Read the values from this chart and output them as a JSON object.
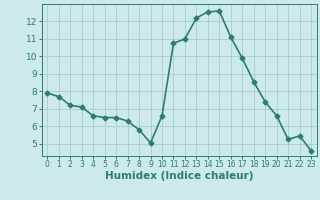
{
  "x": [
    0,
    1,
    2,
    3,
    4,
    5,
    6,
    7,
    8,
    9,
    10,
    11,
    12,
    13,
    14,
    15,
    16,
    17,
    18,
    19,
    20,
    21,
    22,
    23
  ],
  "y": [
    7.9,
    7.7,
    7.2,
    7.1,
    6.6,
    6.5,
    6.5,
    6.3,
    5.8,
    5.05,
    6.6,
    10.75,
    11.0,
    12.2,
    12.55,
    12.6,
    11.1,
    9.9,
    8.55,
    7.4,
    6.6,
    5.25,
    5.45,
    4.6
  ],
  "xlabel": "Humidex (Indice chaleur)",
  "xlim": [
    -0.5,
    23.5
  ],
  "ylim": [
    4.3,
    13.0
  ],
  "yticks": [
    5,
    6,
    7,
    8,
    9,
    10,
    11,
    12
  ],
  "xticks": [
    0,
    1,
    2,
    3,
    4,
    5,
    6,
    7,
    8,
    9,
    10,
    11,
    12,
    13,
    14,
    15,
    16,
    17,
    18,
    19,
    20,
    21,
    22,
    23
  ],
  "line_color": "#2d7d6e",
  "marker": "D",
  "marker_size": 2.5,
  "bg_color": "#cceaea",
  "grid_color": "#b0d0d0",
  "axis_color": "#2d7d6e",
  "tick_color": "#2d7d6e",
  "label_color": "#2d7d6e",
  "line_width": 1.2
}
